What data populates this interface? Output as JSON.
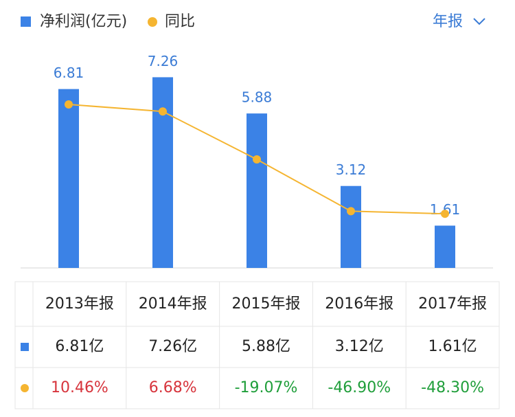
{
  "chart_data": {
    "type": "bar",
    "categories": [
      "2013年报",
      "2014年报",
      "2015年报",
      "2016年报",
      "2017年报"
    ],
    "series": [
      {
        "name": "净利润(亿元)",
        "color": "#3b82e6",
        "values": [
          6.81,
          7.26,
          5.88,
          3.12,
          1.61
        ],
        "value_labels": [
          "6.81亿",
          "7.26亿",
          "5.88亿",
          "3.12亿",
          "1.61亿"
        ]
      },
      {
        "name": "同比",
        "type": "line",
        "axis": "y2",
        "color": "#f5b531",
        "values": [
          10.46,
          6.68,
          -19.07,
          -46.9,
          -48.3
        ],
        "value_labels": [
          "10.46%",
          "6.68%",
          "-19.07%",
          "-46.90%",
          "-48.30%"
        ]
      }
    ],
    "ylim": [
      0,
      8.5
    ],
    "y2lim": [
      -77.4,
      42.6
    ],
    "period_selector": "年报",
    "label_colors": {
      "positive": "#d7343c",
      "negative": "#1f9e3a"
    }
  }
}
